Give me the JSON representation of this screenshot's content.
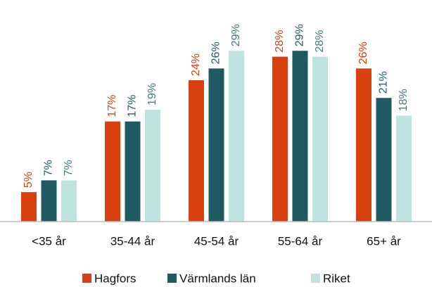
{
  "chart_data": {
    "type": "bar",
    "categories": [
      "<35 år",
      "35-44 år",
      "45-54 år",
      "55-64 år",
      "65+ år"
    ],
    "series": [
      {
        "name": "Hagfors",
        "color": "#d8400f",
        "label_color": "#d8400f",
        "values": [
          5,
          17,
          24,
          28,
          26
        ],
        "value_labels": [
          "5%",
          "17%",
          "24%",
          "28%",
          "26%"
        ]
      },
      {
        "name": "Värmlands län",
        "color": "#1f5a63",
        "label_color": "#1f5a63",
        "values": [
          7,
          17,
          26,
          29,
          21
        ],
        "value_labels": [
          "7%",
          "17%",
          "26%",
          "29%",
          "21%"
        ]
      },
      {
        "name": "Riket",
        "color": "#bfe3de",
        "label_color": "#3f7c7c",
        "values": [
          7,
          19,
          29,
          28,
          18
        ],
        "value_labels": [
          "7%",
          "19%",
          "29%",
          "28%",
          "18%"
        ]
      }
    ],
    "ylim": [
      0,
      35
    ]
  }
}
